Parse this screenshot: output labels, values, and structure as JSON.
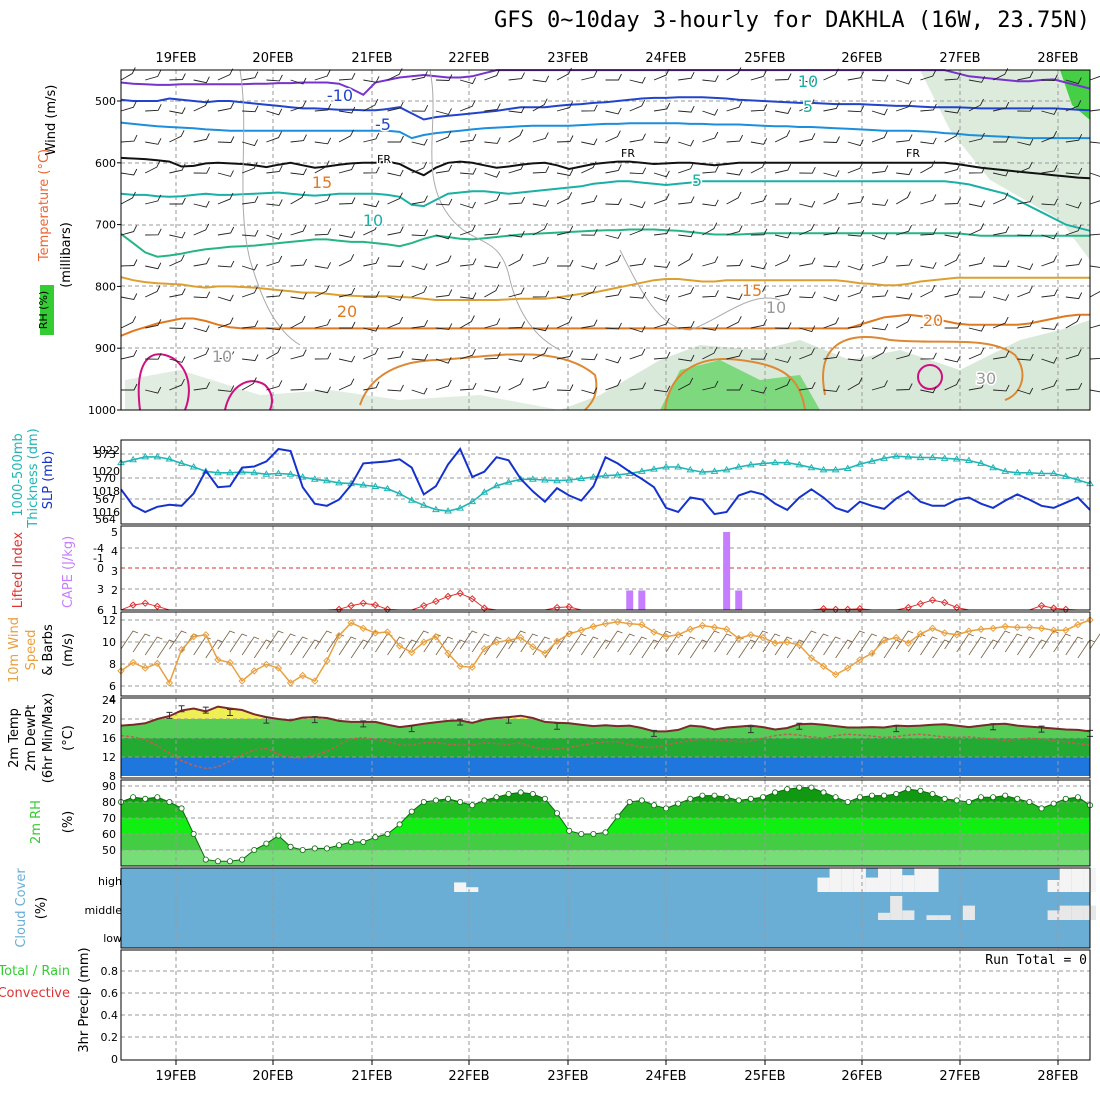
{
  "title": "GFS 0~10day 3-hourly for DAKHLA (16W, 23.75N)",
  "date_labels": [
    "19FEB",
    "20FEB",
    "21FEB",
    "22FEB",
    "23FEB",
    "24FEB",
    "25FEB",
    "26FEB",
    "27FEB",
    "28FEB"
  ],
  "colors": {
    "grid": "#9a9a9a",
    "rh_green": "#33cc33",
    "rh_light": "#cfe3cf",
    "sky_blue": "#6aaed6",
    "temp_blue": "#1f77dd",
    "slp_blue": "#1533cc",
    "thick_cyan": "#22b5b5",
    "wind_orange": "#e8a040",
    "cape_violet": "#c77dff",
    "li_red": "#dd3333",
    "contour_cold": "#7733cc",
    "contour_0": "#111111",
    "contour_warm": "#dd8833",
    "contour_hot": "#d01080"
  },
  "panels": [
    {
      "id": "upper_air",
      "ylabels": [
        "Wind (m/s)",
        "Temperature (°C)",
        "(millibars)",
        "RH (%)"
      ],
      "ticks": [
        "500",
        "600",
        "700",
        "800",
        "900",
        "1000"
      ],
      "contour_labels": [
        "-10",
        "10",
        "-5",
        "5",
        "FR",
        "FR",
        "FR",
        "5",
        "10",
        "15",
        "15",
        "20",
        "20",
        "10",
        "10",
        "30"
      ]
    },
    {
      "id": "slp_thickness",
      "ylabels": [
        "1000-500mb",
        "Thickness (dm)",
        "SLP (mb)"
      ],
      "ticks_left": [
        "573",
        "570",
        "567",
        "564"
      ],
      "ticks_right": [
        "1022",
        "1020",
        "1018",
        "1016"
      ]
    },
    {
      "id": "cape_li",
      "ylabels": [
        "Lifted Index",
        "CAPE (J/kg)"
      ],
      "ticks_left": [
        "-4",
        "-1",
        "0",
        "3",
        "6"
      ],
      "ticks_right": [
        "5",
        "4",
        "3",
        "2",
        "1"
      ]
    },
    {
      "id": "wind10m",
      "ylabels": [
        "10m Wind",
        "Speed",
        "& Barbs",
        "(m/s)"
      ],
      "ticks": [
        "12",
        "10",
        "8",
        "6",
        "4"
      ]
    },
    {
      "id": "temp2m",
      "ylabels": [
        "2m Temp",
        "2m DewPt",
        "(6hr Min/Max)",
        "(°C)"
      ],
      "ticks": [
        "24",
        "20",
        "16",
        "12",
        "8"
      ]
    },
    {
      "id": "rh2m",
      "ylabels": [
        "2m RH",
        "(%)"
      ],
      "ticks": [
        "90",
        "80",
        "70",
        "60",
        "50"
      ]
    },
    {
      "id": "cloud",
      "ylabels": [
        "Cloud Cover",
        "(%)"
      ],
      "ticks": [
        "high",
        "middle",
        "low"
      ]
    },
    {
      "id": "precip",
      "ylabels": [
        "Total / Rain",
        "Convective",
        "3hr Precip (mm)"
      ],
      "ticks": [
        "0.8",
        "0.6",
        "0.4",
        "0.2",
        "0"
      ],
      "note": "Run Total = 0"
    }
  ],
  "chart_data": [
    {
      "type": "line",
      "panel": "slp_thickness",
      "series": [
        {
          "name": "SLP (mb)",
          "color": "#1533cc",
          "axis": "right",
          "values": [
            1018.2,
            1016.6,
            1016.0,
            1016.5,
            1016.7,
            1016.6,
            1017.8,
            1020.0,
            1018.4,
            1018.5,
            1020.3,
            1020.4,
            1020.9,
            1022.1,
            1021.9,
            1018.4,
            1016.8,
            1016.6,
            1017.2,
            1018.6,
            1020.7,
            1020.8,
            1020.9,
            1021.1,
            1020.3,
            1017.7,
            1018.5,
            1020.6,
            1022.1,
            1019.4,
            1019.9,
            1021.3,
            1021.0,
            1019.2,
            1018.0,
            1017.0,
            1018.3,
            1017.6,
            1017.1,
            1018.5,
            1021.3,
            1020.7,
            1019.9,
            1019.2,
            1018.4,
            1016.4,
            1016.0,
            1017.4,
            1017.2,
            1015.8,
            1016.0,
            1017.6,
            1018.0,
            1017.7,
            1016.8,
            1016.2,
            1017.4,
            1018.2,
            1017.4,
            1016.4,
            1016.0,
            1017.0,
            1016.6,
            1016.3,
            1017.3,
            1018.0,
            1017.0,
            1016.6,
            1016.6,
            1017.2,
            1017.4,
            1016.8,
            1016.4,
            1017.1,
            1017.7,
            1017.2,
            1016.6,
            1016.4,
            1016.9,
            1017.4,
            1016.2
          ]
        },
        {
          "name": "1000-500mb Thickness (dm)",
          "color": "#22b5b5",
          "axis": "left",
          "values": [
            571.8,
            572.2,
            572.6,
            572.6,
            572.3,
            571.7,
            571.2,
            570.6,
            570.4,
            570.4,
            570.5,
            570.4,
            570.2,
            570.3,
            570.2,
            569.8,
            569.5,
            569.3,
            569.0,
            568.9,
            568.7,
            568.5,
            568.2,
            567.5,
            566.6,
            565.9,
            565.3,
            565.1,
            565.5,
            566.4,
            567.7,
            568.6,
            569.1,
            569.5,
            569.5,
            569.4,
            569.3,
            569.4,
            569.6,
            569.8,
            570.0,
            570.1,
            570.3,
            570.6,
            570.9,
            571.2,
            571.2,
            570.8,
            570.5,
            570.6,
            570.8,
            571.2,
            571.5,
            571.7,
            571.8,
            571.8,
            571.5,
            571.1,
            570.8,
            570.8,
            571.0,
            571.6,
            572.0,
            572.4,
            572.7,
            572.6,
            572.5,
            572.5,
            572.4,
            572.3,
            572.1,
            571.7,
            571.1,
            570.6,
            570.4,
            570.4,
            570.3,
            570.3,
            569.9,
            569.4,
            568.9
          ]
        }
      ]
    },
    {
      "type": "bar",
      "panel": "cape_li",
      "series": [
        {
          "name": "CAPE (J/kg)",
          "color": "#c77dff",
          "points": [
            [
              42,
              2
            ],
            [
              43,
              2
            ],
            [
              50,
              5
            ],
            [
              51,
              2
            ]
          ]
        },
        {
          "name": "Lifted Index",
          "color": "#dd3333",
          "axis": "left",
          "values": [
            6,
            5.2,
            4.9,
            5.4,
            6,
            6,
            6,
            6,
            6,
            6,
            6,
            6,
            6,
            6,
            6,
            6,
            6,
            6,
            5.9,
            5.3,
            4.9,
            5.2,
            5.9,
            6,
            6,
            5.3,
            4.6,
            3.8,
            3.3,
            4.2,
            5.7,
            6,
            6,
            6,
            6,
            6,
            5.6,
            5.5,
            6,
            6,
            6,
            6,
            6,
            6,
            6,
            6,
            6,
            6,
            6,
            6,
            6,
            6,
            6,
            6,
            6,
            6,
            6,
            6,
            5.8,
            5.9,
            5.9,
            5.8,
            6,
            6,
            6,
            5.6,
            5.0,
            4.4,
            4.8,
            5.6,
            6,
            6,
            6,
            6,
            6,
            6,
            5.3,
            5.7,
            5.9,
            6,
            6
          ]
        }
      ]
    },
    {
      "type": "line",
      "panel": "wind10m",
      "series": [
        {
          "name": "10m Wind Speed (m/s)",
          "color": "#e8a040",
          "values": [
            6.5,
            7.4,
            6.8,
            7.3,
            5.2,
            8.8,
            10.2,
            10.4,
            7.7,
            7.4,
            5.4,
            6.5,
            7.2,
            6.8,
            5.2,
            6.0,
            5.4,
            7.6,
            10.3,
            11.7,
            11.1,
            10.6,
            10.7,
            9.2,
            8.5,
            9.6,
            10.2,
            8.4,
            7.0,
            6.9,
            8.9,
            9.6,
            9.8,
            10.1,
            9.1,
            8.4,
            9.7,
            10.5,
            10.9,
            11.3,
            11.6,
            11.8,
            11.6,
            11.5,
            10.7,
            10.2,
            10.4,
            11.0,
            11.4,
            11.2,
            11.0,
            10.0,
            10.4,
            10.1,
            9.5,
            9.6,
            9.3,
            7.9,
            7.0,
            6.1,
            6.8,
            7.7,
            8.4,
            9.8,
            10.1,
            9.5,
            10.5,
            11.1,
            10.6,
            10.4,
            10.8,
            11.0,
            11.1,
            11.3,
            11.2,
            11.2,
            11.1,
            10.9,
            10.9,
            11.5,
            12.0
          ]
        }
      ]
    },
    {
      "type": "area",
      "panel": "temp2m",
      "series": [
        {
          "name": "2m Temp (°C)",
          "color": "#7a2a2a",
          "values": [
            18.6,
            18.8,
            19.1,
            20.0,
            20.6,
            21.8,
            22.2,
            21.6,
            22.6,
            22.2,
            21.9,
            21.0,
            20.4,
            20.0,
            19.7,
            20.3,
            20.4,
            20.2,
            19.6,
            19.4,
            19.4,
            19.4,
            18.8,
            18.3,
            18.6,
            19.0,
            19.3,
            19.6,
            19.7,
            19.2,
            19.9,
            20.2,
            20.4,
            20.7,
            20.2,
            19.4,
            19.2,
            19.1,
            18.8,
            18.5,
            18.7,
            18.5,
            18.6,
            18.1,
            17.4,
            17.4,
            17.7,
            18.6,
            18.4,
            17.8,
            18.2,
            18.4,
            18.6,
            18.3,
            17.8,
            18.1,
            18.9,
            19.0,
            18.8,
            18.5,
            18.2,
            18.2,
            18.3,
            18.2,
            18.6,
            18.5,
            18.6,
            18.8,
            18.9,
            18.6,
            18.3,
            18.6,
            18.9,
            19.0,
            18.6,
            18.4,
            18.2,
            18.0,
            17.8,
            17.7,
            17.4
          ]
        },
        {
          "name": "2m DewPt (°C)",
          "color": "#c06050",
          "values": [
            16.5,
            16.2,
            15.7,
            14.4,
            12.8,
            11.2,
            10.2,
            9.6,
            9.9,
            11.2,
            12.4,
            13.5,
            13.8,
            12.6,
            11.9,
            11.8,
            12.4,
            13.2,
            14.6,
            15.8,
            16.1,
            15.7,
            15.3,
            14.5,
            14.5,
            15.0,
            15.1,
            14.7,
            14.5,
            14.6,
            15.0,
            14.8,
            14.7,
            15.0,
            14.1,
            13.6,
            13.7,
            14.0,
            14.5,
            14.9,
            15.2,
            15.2,
            14.6,
            14.1,
            14.0,
            14.5,
            15.1,
            15.5,
            15.7,
            15.6,
            15.5,
            15.2,
            15.3,
            16.0,
            16.5,
            16.8,
            16.6,
            16.2,
            16.0,
            16.5,
            16.8,
            16.6,
            16.4,
            16.1,
            16.3,
            16.6,
            16.8,
            16.5,
            16.2,
            16.1,
            16.2,
            16.0,
            15.8,
            15.5,
            15.7,
            16.0,
            15.8,
            15.4,
            15.2,
            14.8,
            14.5
          ]
        },
        {
          "name": "6hr Max (°C)",
          "color": "#333333",
          "points": [
            [
              4,
              21.4
            ],
            [
              5,
              22.8
            ],
            [
              7,
              22.5
            ],
            [
              9,
              22.0
            ],
            [
              12,
              20.4
            ],
            [
              16,
              20.5
            ],
            [
              20,
              19.6
            ],
            [
              24,
              18.6
            ],
            [
              28,
              20.0
            ],
            [
              32,
              20.4
            ],
            [
              36,
              19.1
            ],
            [
              44,
              17.6
            ],
            [
              52,
              18.4
            ],
            [
              56,
              19.1
            ],
            [
              64,
              18.6
            ],
            [
              72,
              19.0
            ],
            [
              76,
              18.5
            ],
            [
              80,
              17.6
            ]
          ]
        }
      ]
    },
    {
      "type": "area",
      "panel": "rh2m",
      "series": [
        {
          "name": "2m RH (%)",
          "color": "#33cc33",
          "values": [
            80,
            83,
            82,
            83,
            80,
            76,
            60,
            44,
            43,
            43,
            44,
            50,
            54,
            59,
            52,
            50,
            51,
            51,
            53,
            55,
            55,
            58,
            60,
            66,
            74,
            80,
            81,
            82,
            80,
            78,
            81,
            83,
            85,
            86,
            85,
            82,
            73,
            62,
            60,
            60,
            61,
            71,
            80,
            81,
            78,
            76,
            79,
            82,
            84,
            84,
            83,
            81,
            82,
            83,
            86,
            88,
            89,
            89,
            86,
            83,
            80,
            83,
            84,
            84,
            85,
            88,
            87,
            85,
            82,
            81,
            80,
            83,
            83,
            84,
            82,
            80,
            76,
            79,
            82,
            83,
            78
          ]
        }
      ]
    },
    {
      "type": "heatmap",
      "panel": "cloud",
      "series": [
        {
          "name": "high",
          "points": [
            [
              28,
              40
            ],
            [
              29,
              20
            ],
            [
              58,
              60
            ],
            [
              59,
              100
            ],
            [
              60,
              100
            ],
            [
              61,
              100
            ],
            [
              62,
              60
            ],
            [
              63,
              100
            ],
            [
              64,
              100
            ],
            [
              65,
              70
            ],
            [
              66,
              100
            ],
            [
              67,
              100
            ],
            [
              77,
              50
            ],
            [
              78,
              100
            ],
            [
              79,
              100
            ],
            [
              80,
              100
            ]
          ]
        },
        {
          "name": "middle",
          "points": [
            [
              63,
              30
            ],
            [
              64,
              100
            ],
            [
              65,
              40
            ],
            [
              67,
              20
            ],
            [
              68,
              20
            ],
            [
              70,
              60
            ],
            [
              77,
              40
            ],
            [
              78,
              60
            ],
            [
              79,
              60
            ],
            [
              80,
              60
            ]
          ]
        }
      ]
    },
    {
      "type": "bar",
      "panel": "precip",
      "series": [
        {
          "name": "Total / Rain",
          "values": []
        },
        {
          "name": "Convective",
          "values": []
        }
      ]
    }
  ]
}
